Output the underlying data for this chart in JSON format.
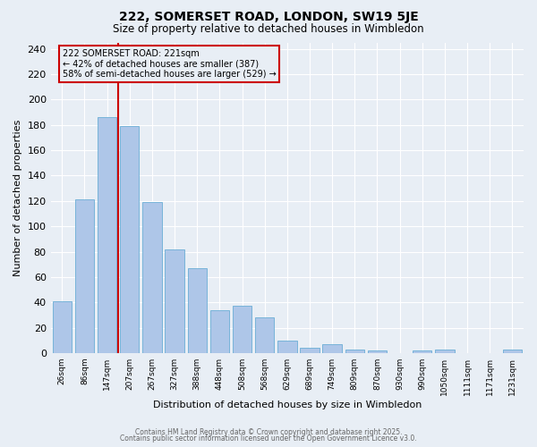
{
  "title": "222, SOMERSET ROAD, LONDON, SW19 5JE",
  "subtitle": "Size of property relative to detached houses in Wimbledon",
  "xlabel": "Distribution of detached houses by size in Wimbledon",
  "ylabel": "Number of detached properties",
  "bar_labels": [
    "26sqm",
    "86sqm",
    "147sqm",
    "207sqm",
    "267sqm",
    "327sqm",
    "388sqm",
    "448sqm",
    "508sqm",
    "568sqm",
    "629sqm",
    "689sqm",
    "749sqm",
    "809sqm",
    "870sqm",
    "930sqm",
    "990sqm",
    "1050sqm",
    "1111sqm",
    "1171sqm",
    "1231sqm"
  ],
  "bar_values": [
    41,
    121,
    186,
    179,
    119,
    82,
    67,
    34,
    37,
    28,
    10,
    4,
    7,
    3,
    2,
    0,
    2,
    3,
    0,
    0,
    3
  ],
  "bar_color": "#aec6e8",
  "bar_edge_color": "#6aadd5",
  "marker_label_line1": "222 SOMERSET ROAD: 221sqm",
  "marker_label_line2": "← 42% of detached houses are smaller (387)",
  "marker_label_line3": "58% of semi-detached houses are larger (529) →",
  "marker_color": "#cc0000",
  "annotation_box_color": "#cc0000",
  "marker_bar_index": 3,
  "ylim": [
    0,
    245
  ],
  "yticks": [
    0,
    20,
    40,
    60,
    80,
    100,
    120,
    140,
    160,
    180,
    200,
    220,
    240
  ],
  "bg_color": "#e8eef5",
  "grid_color": "#ffffff",
  "footer_line1": "Contains HM Land Registry data © Crown copyright and database right 2025.",
  "footer_line2": "Contains public sector information licensed under the Open Government Licence v3.0.",
  "title_fontsize": 10,
  "subtitle_fontsize": 8.5,
  "ylabel_fontsize": 8,
  "xlabel_fontsize": 8,
  "ytick_fontsize": 8,
  "xtick_fontsize": 6.5,
  "footer_fontsize": 5.5,
  "annot_fontsize": 7
}
